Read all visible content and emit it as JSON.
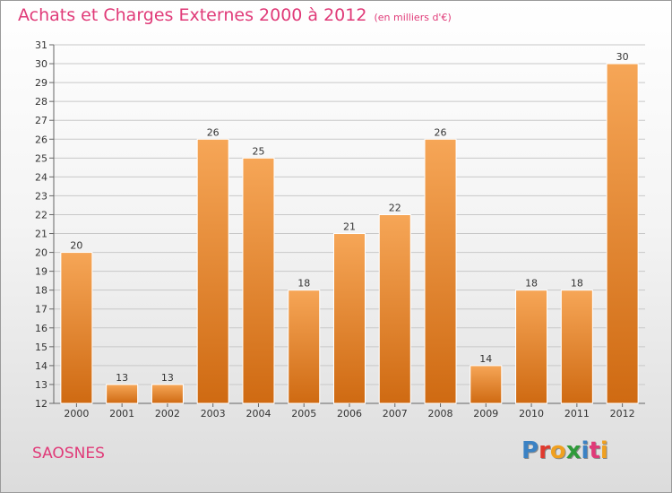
{
  "header": {
    "title": "Achats et Charges Externes 2000 à 2012",
    "subtitle": "(en milliers d'€)"
  },
  "footer": {
    "city": "SAOSNES",
    "logo": "Proxiti",
    "logo_colors": [
      "#3b82c4",
      "#e03a2e",
      "#f0a020",
      "#2f9a3a",
      "#3b82c4",
      "#e03a78",
      "#f0a020"
    ]
  },
  "chart_data": {
    "type": "bar",
    "categories": [
      "2000",
      "2001",
      "2002",
      "2003",
      "2004",
      "2005",
      "2006",
      "2007",
      "2008",
      "2009",
      "2010",
      "2011",
      "2012"
    ],
    "values": [
      20,
      13,
      13,
      26,
      25,
      18,
      21,
      22,
      26,
      14,
      18,
      18,
      30
    ],
    "data_labels": [
      "20",
      "13",
      "13",
      "26",
      "25",
      "18",
      "21",
      "22",
      "26",
      "14",
      "18",
      "18",
      "30"
    ],
    "ylim": [
      12,
      31
    ],
    "yticks": [
      "12",
      "13",
      "14",
      "15",
      "16",
      "17",
      "18",
      "19",
      "20",
      "21",
      "22",
      "23",
      "24",
      "25",
      "26",
      "27",
      "28",
      "29",
      "30",
      "31"
    ],
    "grid": true,
    "bar_color_top": "#f6a657",
    "bar_color_bottom": "#cf6a12"
  }
}
